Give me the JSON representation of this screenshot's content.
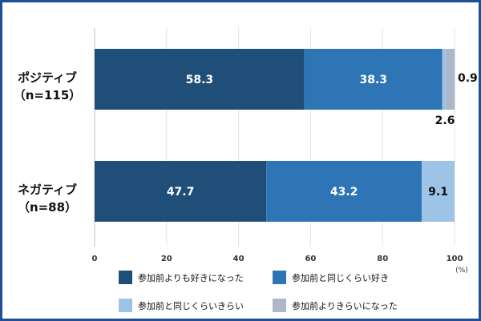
{
  "chart_data": {
    "type": "bar",
    "orientation": "horizontal",
    "stacked": true,
    "categories": [
      "ポジティブ\n（n=115）",
      "ネガティブ\n（n=88）"
    ],
    "series": [
      {
        "name": "参加前よりも好きになった",
        "values": [
          58.3,
          47.7
        ],
        "color": "#1f4e79"
      },
      {
        "name": "参加前と同じくらい好き",
        "values": [
          38.3,
          43.2
        ],
        "color": "#2e75b6"
      },
      {
        "name": "参加前と同じくらいきらい",
        "values": [
          0.9,
          9.1
        ],
        "color": "#9dc3e6"
      },
      {
        "name": "参加前よりきらいになった",
        "values": [
          2.6,
          0
        ],
        "color": "#adb9ca"
      }
    ],
    "data_labels": [
      [
        "58.3",
        "38.3",
        "0.9",
        "2.6"
      ],
      [
        "47.7",
        "43.2",
        "9.1",
        ""
      ]
    ],
    "xlim": [
      0,
      100
    ],
    "xticks": [
      "0",
      "20",
      "40",
      "60",
      "80",
      "100"
    ],
    "unit_label": "(%)",
    "grid": true,
    "legend_position": "bottom"
  }
}
